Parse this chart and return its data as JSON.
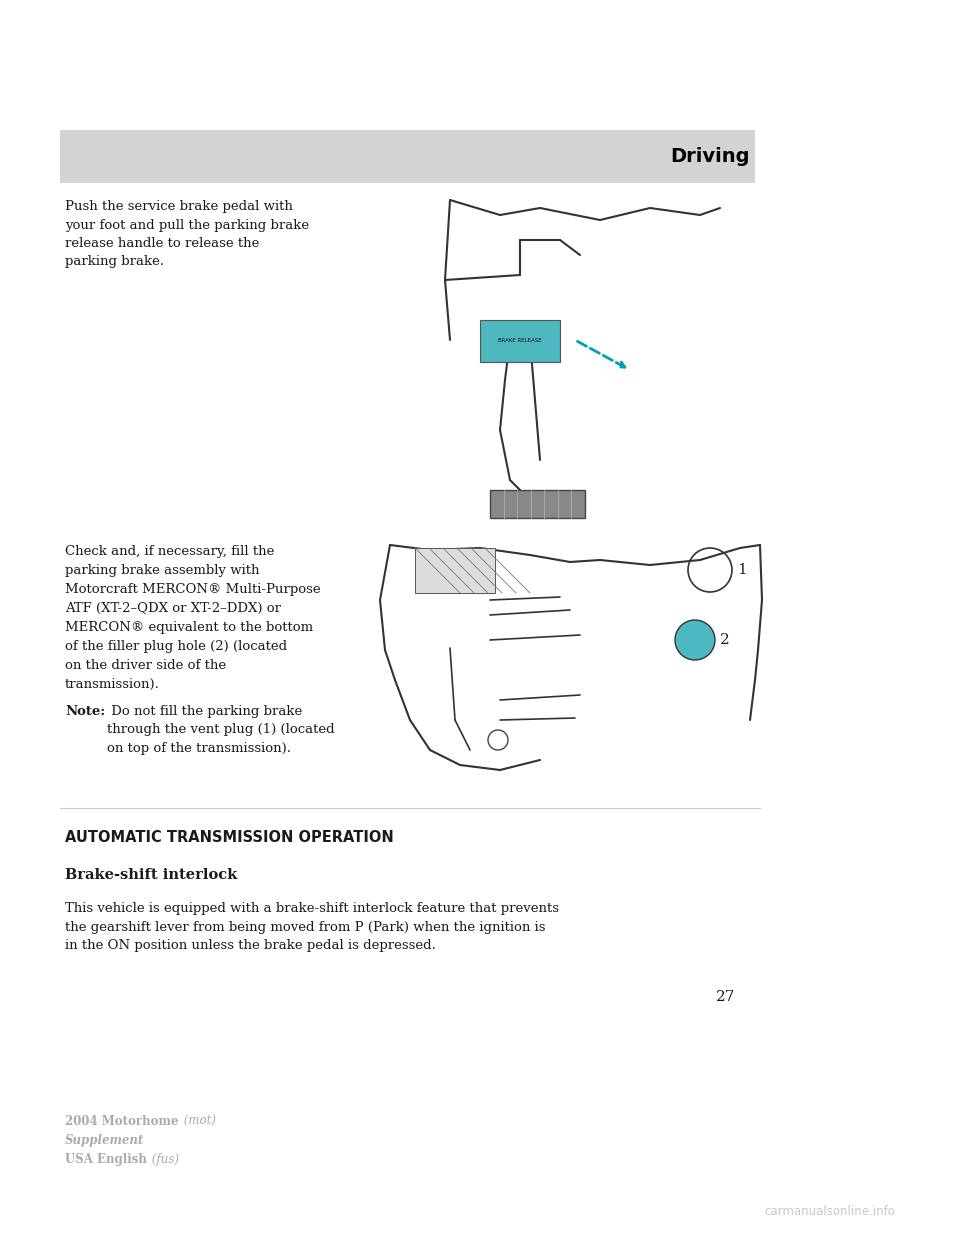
{
  "bg_color": "#ffffff",
  "header_bg": "#d3d3d3",
  "header_text": "Driving",
  "text1": "Push the service brake pedal with\nyour foot and pull the parking brake\nrelease handle to release the\nparking brake.",
  "text2_lines": [
    "Check and, if necessary, fill the",
    "parking brake assembly with",
    "Motorcraft MERCON® Multi-Purpose",
    "ATF (XT-2–QDX or XT-2–DDX) or",
    "MERCON® equivalent to the bottom",
    "of the filler plug hole (2) (located",
    "on the driver side of the",
    "transmission)."
  ],
  "note_bold": "Note:",
  "note_rest": " Do not fill the parking brake\nthrough the vent plug (1) (located\non top of the transmission).",
  "section_title": "AUTOMATIC TRANSMISSION OPERATION",
  "subsection_title": "Brake-shift interlock",
  "body_text": "This vehicle is equipped with a brake-shift interlock feature that prevents\nthe gearshift lever from being moved from P (Park) when the ignition is\nin the ON position unless the brake pedal is depressed.",
  "page_num": "27",
  "footer_line1_bold": "2004 Motorhome",
  "footer_line1_italic": " (mot)",
  "footer_line2_italic_bold": "Supplement",
  "footer_line3_bold": "USA English",
  "footer_line3_italic": " (fus)",
  "watermark": "carmanualsonline.info",
  "teal_color": "#4db8c0",
  "arrow_color": "#00a0b8",
  "text_color": "#1a1a1a",
  "gray_color": "#aaaaaa"
}
